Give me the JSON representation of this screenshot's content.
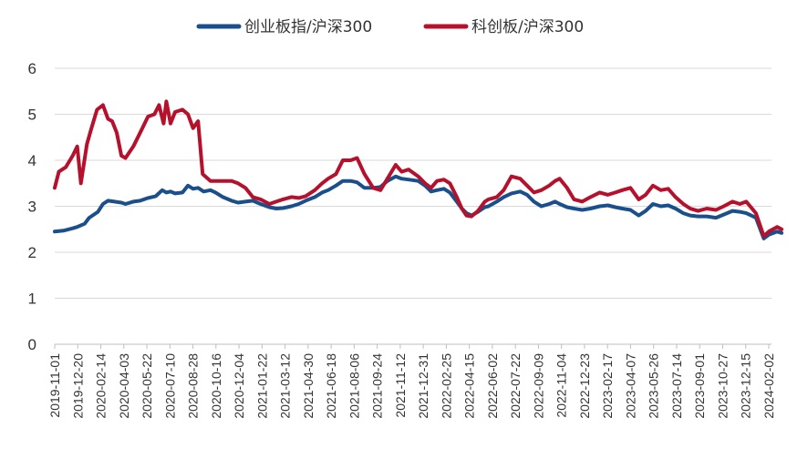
{
  "chart_data": {
    "type": "line",
    "title": "",
    "xlabel": "",
    "ylabel": "",
    "ylim": [
      0,
      6
    ],
    "yticks": [
      "0",
      "1",
      "2",
      "3",
      "4",
      "5",
      "6"
    ],
    "grid": "horizontal",
    "legend_position": "top",
    "xtick_labels": [
      "2019-11-01",
      "2019-12-20",
      "2020-02-14",
      "2020-04-03",
      "2020-05-22",
      "2020-07-10",
      "2020-08-28",
      "2020-10-16",
      "2020-12-04",
      "2021-01-22",
      "2021-03-12",
      "2021-04-30",
      "2021-06-18",
      "2021-08-06",
      "2021-09-24",
      "2021-11-12",
      "2021-12-31",
      "2022-02-25",
      "2022-04-15",
      "2022-06-02",
      "2022-07-22",
      "2022-09-09",
      "2022-11-04",
      "2022-12-23",
      "2023-02-17",
      "2023-04-07",
      "2023-05-26",
      "2023-07-14",
      "2023-09-01",
      "2023-10-27",
      "2023-12-15",
      "2024-02-02"
    ],
    "series": [
      {
        "name": "创业板指/沪深300",
        "color": "#1a4f8b",
        "points": [
          [
            "2019-11-01",
            2.45
          ],
          [
            "2019-11-20",
            2.47
          ],
          [
            "2019-12-10",
            2.52
          ],
          [
            "2019-12-20",
            2.55
          ],
          [
            "2020-01-05",
            2.62
          ],
          [
            "2020-01-15",
            2.75
          ],
          [
            "2020-02-03",
            2.88
          ],
          [
            "2020-02-14",
            3.05
          ],
          [
            "2020-02-25",
            3.12
          ],
          [
            "2020-03-10",
            3.1
          ],
          [
            "2020-03-25",
            3.08
          ],
          [
            "2020-04-03",
            3.05
          ],
          [
            "2020-04-20",
            3.1
          ],
          [
            "2020-05-05",
            3.12
          ],
          [
            "2020-05-22",
            3.18
          ],
          [
            "2020-06-08",
            3.22
          ],
          [
            "2020-06-22",
            3.35
          ],
          [
            "2020-07-01",
            3.3
          ],
          [
            "2020-07-10",
            3.32
          ],
          [
            "2020-07-20",
            3.28
          ],
          [
            "2020-08-05",
            3.3
          ],
          [
            "2020-08-17",
            3.45
          ],
          [
            "2020-08-28",
            3.38
          ],
          [
            "2020-09-08",
            3.4
          ],
          [
            "2020-09-20",
            3.32
          ],
          [
            "2020-10-05",
            3.35
          ],
          [
            "2020-10-16",
            3.3
          ],
          [
            "2020-11-01",
            3.2
          ],
          [
            "2020-11-20",
            3.12
          ],
          [
            "2020-12-04",
            3.08
          ],
          [
            "2020-12-20",
            3.1
          ],
          [
            "2021-01-05",
            3.12
          ],
          [
            "2021-01-22",
            3.05
          ],
          [
            "2021-02-10",
            2.98
          ],
          [
            "2021-02-25",
            2.95
          ],
          [
            "2021-03-12",
            2.96
          ],
          [
            "2021-03-30",
            3.0
          ],
          [
            "2021-04-15",
            3.05
          ],
          [
            "2021-04-30",
            3.12
          ],
          [
            "2021-05-20",
            3.2
          ],
          [
            "2021-06-05",
            3.3
          ],
          [
            "2021-06-18",
            3.35
          ],
          [
            "2021-07-05",
            3.45
          ],
          [
            "2021-07-20",
            3.55
          ],
          [
            "2021-08-06",
            3.55
          ],
          [
            "2021-08-20",
            3.52
          ],
          [
            "2021-09-05",
            3.4
          ],
          [
            "2021-09-24",
            3.4
          ],
          [
            "2021-10-10",
            3.42
          ],
          [
            "2021-10-25",
            3.55
          ],
          [
            "2021-11-12",
            3.65
          ],
          [
            "2021-11-25",
            3.6
          ],
          [
            "2021-12-10",
            3.58
          ],
          [
            "2021-12-31",
            3.55
          ],
          [
            "2022-01-15",
            3.45
          ],
          [
            "2022-01-28",
            3.32
          ],
          [
            "2022-02-10",
            3.35
          ],
          [
            "2022-02-25",
            3.38
          ],
          [
            "2022-03-10",
            3.3
          ],
          [
            "2022-03-25",
            3.1
          ],
          [
            "2022-04-05",
            2.95
          ],
          [
            "2022-04-15",
            2.85
          ],
          [
            "2022-04-26",
            2.8
          ],
          [
            "2022-05-10",
            2.88
          ],
          [
            "2022-05-25",
            2.98
          ],
          [
            "2022-06-02",
            3.0
          ],
          [
            "2022-06-20",
            3.1
          ],
          [
            "2022-07-05",
            3.2
          ],
          [
            "2022-07-22",
            3.28
          ],
          [
            "2022-08-10",
            3.32
          ],
          [
            "2022-08-25",
            3.25
          ],
          [
            "2022-09-09",
            3.1
          ],
          [
            "2022-09-25",
            3.0
          ],
          [
            "2022-10-12",
            3.05
          ],
          [
            "2022-10-25",
            3.1
          ],
          [
            "2022-11-04",
            3.05
          ],
          [
            "2022-11-20",
            2.98
          ],
          [
            "2022-12-05",
            2.95
          ],
          [
            "2022-12-23",
            2.92
          ],
          [
            "2023-01-10",
            2.95
          ],
          [
            "2023-01-30",
            3.0
          ],
          [
            "2023-02-17",
            3.02
          ],
          [
            "2023-03-05",
            2.98
          ],
          [
            "2023-03-20",
            2.95
          ],
          [
            "2023-04-07",
            2.92
          ],
          [
            "2023-04-25",
            2.8
          ],
          [
            "2023-05-10",
            2.9
          ],
          [
            "2023-05-26",
            3.05
          ],
          [
            "2023-06-12",
            3.0
          ],
          [
            "2023-06-28",
            3.02
          ],
          [
            "2023-07-14",
            2.95
          ],
          [
            "2023-07-31",
            2.85
          ],
          [
            "2023-08-15",
            2.8
          ],
          [
            "2023-09-01",
            2.78
          ],
          [
            "2023-09-20",
            2.78
          ],
          [
            "2023-10-10",
            2.75
          ],
          [
            "2023-10-27",
            2.82
          ],
          [
            "2023-11-15",
            2.9
          ],
          [
            "2023-12-01",
            2.88
          ],
          [
            "2023-12-15",
            2.85
          ],
          [
            "2024-01-05",
            2.75
          ],
          [
            "2024-01-22",
            2.3
          ],
          [
            "2024-02-02",
            2.38
          ],
          [
            "2024-02-20",
            2.45
          ],
          [
            "2024-03-01",
            2.42
          ]
        ]
      },
      {
        "name": "科创板/沪深300",
        "color": "#b5112d",
        "points": [
          [
            "2019-11-01",
            3.4
          ],
          [
            "2019-11-10",
            3.75
          ],
          [
            "2019-11-25",
            3.85
          ],
          [
            "2019-12-10",
            4.1
          ],
          [
            "2019-12-20",
            4.3
          ],
          [
            "2019-12-28",
            3.5
          ],
          [
            "2020-01-10",
            4.35
          ],
          [
            "2020-01-20",
            4.7
          ],
          [
            "2020-02-01",
            5.1
          ],
          [
            "2020-02-14",
            5.2
          ],
          [
            "2020-02-25",
            4.9
          ],
          [
            "2020-03-05",
            4.85
          ],
          [
            "2020-03-15",
            4.6
          ],
          [
            "2020-03-25",
            4.1
          ],
          [
            "2020-04-03",
            4.05
          ],
          [
            "2020-04-20",
            4.3
          ],
          [
            "2020-05-05",
            4.6
          ],
          [
            "2020-05-22",
            4.95
          ],
          [
            "2020-06-05",
            5.0
          ],
          [
            "2020-06-15",
            5.2
          ],
          [
            "2020-06-25",
            4.8
          ],
          [
            "2020-07-01",
            5.28
          ],
          [
            "2020-07-10",
            4.8
          ],
          [
            "2020-07-20",
            5.05
          ],
          [
            "2020-08-05",
            5.1
          ],
          [
            "2020-08-17",
            5.0
          ],
          [
            "2020-08-28",
            4.7
          ],
          [
            "2020-09-08",
            4.85
          ],
          [
            "2020-09-18",
            3.7
          ],
          [
            "2020-10-05",
            3.55
          ],
          [
            "2020-10-16",
            3.55
          ],
          [
            "2020-11-01",
            3.55
          ],
          [
            "2020-11-20",
            3.55
          ],
          [
            "2020-12-04",
            3.5
          ],
          [
            "2020-12-20",
            3.4
          ],
          [
            "2021-01-05",
            3.2
          ],
          [
            "2021-01-22",
            3.15
          ],
          [
            "2021-02-10",
            3.05
          ],
          [
            "2021-02-25",
            3.1
          ],
          [
            "2021-03-12",
            3.15
          ],
          [
            "2021-03-30",
            3.2
          ],
          [
            "2021-04-15",
            3.18
          ],
          [
            "2021-04-30",
            3.22
          ],
          [
            "2021-05-20",
            3.35
          ],
          [
            "2021-06-05",
            3.5
          ],
          [
            "2021-06-18",
            3.6
          ],
          [
            "2021-07-05",
            3.7
          ],
          [
            "2021-07-20",
            4.0
          ],
          [
            "2021-08-06",
            4.0
          ],
          [
            "2021-08-20",
            4.05
          ],
          [
            "2021-09-05",
            3.7
          ],
          [
            "2021-09-24",
            3.4
          ],
          [
            "2021-10-10",
            3.35
          ],
          [
            "2021-10-25",
            3.6
          ],
          [
            "2021-11-12",
            3.9
          ],
          [
            "2021-11-25",
            3.75
          ],
          [
            "2021-12-10",
            3.8
          ],
          [
            "2021-12-31",
            3.65
          ],
          [
            "2022-01-15",
            3.5
          ],
          [
            "2022-01-28",
            3.4
          ],
          [
            "2022-02-10",
            3.55
          ],
          [
            "2022-02-25",
            3.58
          ],
          [
            "2022-03-10",
            3.5
          ],
          [
            "2022-03-25",
            3.2
          ],
          [
            "2022-04-05",
            2.95
          ],
          [
            "2022-04-15",
            2.8
          ],
          [
            "2022-04-26",
            2.78
          ],
          [
            "2022-05-10",
            2.9
          ],
          [
            "2022-05-25",
            3.1
          ],
          [
            "2022-06-02",
            3.15
          ],
          [
            "2022-06-20",
            3.2
          ],
          [
            "2022-07-05",
            3.35
          ],
          [
            "2022-07-22",
            3.65
          ],
          [
            "2022-08-10",
            3.6
          ],
          [
            "2022-08-25",
            3.45
          ],
          [
            "2022-09-09",
            3.3
          ],
          [
            "2022-09-25",
            3.35
          ],
          [
            "2022-10-12",
            3.45
          ],
          [
            "2022-10-25",
            3.55
          ],
          [
            "2022-11-04",
            3.6
          ],
          [
            "2022-11-20",
            3.4
          ],
          [
            "2022-12-05",
            3.15
          ],
          [
            "2022-12-23",
            3.1
          ],
          [
            "2023-01-10",
            3.2
          ],
          [
            "2023-01-30",
            3.3
          ],
          [
            "2023-02-17",
            3.25
          ],
          [
            "2023-03-05",
            3.3
          ],
          [
            "2023-03-20",
            3.35
          ],
          [
            "2023-04-07",
            3.4
          ],
          [
            "2023-04-25",
            3.15
          ],
          [
            "2023-05-10",
            3.25
          ],
          [
            "2023-05-26",
            3.45
          ],
          [
            "2023-06-12",
            3.35
          ],
          [
            "2023-06-28",
            3.38
          ],
          [
            "2023-07-14",
            3.2
          ],
          [
            "2023-07-31",
            3.05
          ],
          [
            "2023-08-15",
            2.95
          ],
          [
            "2023-09-01",
            2.9
          ],
          [
            "2023-09-20",
            2.95
          ],
          [
            "2023-10-10",
            2.92
          ],
          [
            "2023-10-27",
            3.0
          ],
          [
            "2023-11-15",
            3.1
          ],
          [
            "2023-12-01",
            3.05
          ],
          [
            "2023-12-15",
            3.1
          ],
          [
            "2024-01-05",
            2.85
          ],
          [
            "2024-01-22",
            2.35
          ],
          [
            "2024-02-02",
            2.45
          ],
          [
            "2024-02-20",
            2.55
          ],
          [
            "2024-03-01",
            2.5
          ]
        ]
      }
    ]
  }
}
